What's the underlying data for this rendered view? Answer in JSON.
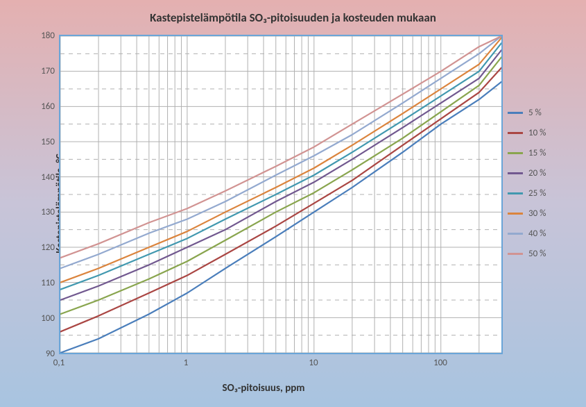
{
  "chart": {
    "type": "line",
    "title": "Kastepistelämpötila SO₃-pitoisuuden ja kosteuden mukaan",
    "title_fontsize": 17,
    "xlabel": "SO₃-pitoisuus, ppm",
    "ylabel": "Kastepistelämpötila, °C",
    "axis_label_fontsize": 15,
    "tick_fontsize": 13,
    "legend_fontsize": 13,
    "plot_background": "#ffffff",
    "plot_border_color": "#6aa5d8",
    "outer_gradient_top": "#e4b0b0",
    "outer_gradient_mid": "#c8c4d8",
    "outer_gradient_bot": "#a8c4e0",
    "grid_major_color": "#b0b0b0",
    "grid_minor_color": "#e8e8e8",
    "grid_major_width": 1,
    "grid_minor_width": 1,
    "x_scale": "log",
    "y_scale": "linear",
    "xlim": [
      0.1,
      300
    ],
    "ylim": [
      90,
      180
    ],
    "y_ticks": [
      90,
      100,
      110,
      120,
      130,
      140,
      150,
      160,
      170,
      180
    ],
    "x_ticks_major": [
      0.1,
      1,
      10,
      100
    ],
    "x_tick_labels": [
      "0,1",
      "1",
      "10",
      "100"
    ],
    "line_width": 2.2,
    "series": [
      {
        "label": "5 %",
        "color": "#4a7ebb",
        "data": [
          [
            0.1,
            89
          ],
          [
            0.2,
            94
          ],
          [
            0.5,
            101
          ],
          [
            1,
            107
          ],
          [
            2,
            114
          ],
          [
            5,
            123
          ],
          [
            10,
            130
          ],
          [
            20,
            137
          ],
          [
            50,
            147
          ],
          [
            100,
            155
          ],
          [
            200,
            162
          ],
          [
            300,
            167
          ]
        ]
      },
      {
        "label": "10 %",
        "color": "#aa4643",
        "data": [
          [
            0.1,
            96
          ],
          [
            0.2,
            100.5
          ],
          [
            0.5,
            107
          ],
          [
            1,
            112
          ],
          [
            2,
            118
          ],
          [
            5,
            126
          ],
          [
            10,
            132.5
          ],
          [
            20,
            139
          ],
          [
            50,
            149
          ],
          [
            100,
            156.5
          ],
          [
            200,
            164
          ],
          [
            300,
            171
          ]
        ]
      },
      {
        "label": "15 %",
        "color": "#89a54e",
        "data": [
          [
            0.1,
            101
          ],
          [
            0.2,
            105
          ],
          [
            0.5,
            111
          ],
          [
            1,
            116
          ],
          [
            2,
            122
          ],
          [
            5,
            130
          ],
          [
            10,
            135.5
          ],
          [
            20,
            142
          ],
          [
            50,
            151
          ],
          [
            100,
            158.5
          ],
          [
            200,
            166
          ],
          [
            300,
            174
          ]
        ]
      },
      {
        "label": "20 %",
        "color": "#71588f",
        "data": [
          [
            0.1,
            105
          ],
          [
            0.2,
            109
          ],
          [
            0.5,
            115
          ],
          [
            1,
            120
          ],
          [
            2,
            125
          ],
          [
            5,
            133
          ],
          [
            10,
            138.5
          ],
          [
            20,
            145
          ],
          [
            50,
            154
          ],
          [
            100,
            161
          ],
          [
            200,
            168
          ],
          [
            300,
            176
          ]
        ]
      },
      {
        "label": "25 %",
        "color": "#4198af",
        "data": [
          [
            0.1,
            108
          ],
          [
            0.2,
            112
          ],
          [
            0.5,
            118
          ],
          [
            1,
            122.5
          ],
          [
            2,
            128
          ],
          [
            5,
            135
          ],
          [
            10,
            140.5
          ],
          [
            20,
            147
          ],
          [
            50,
            156
          ],
          [
            100,
            163
          ],
          [
            200,
            170
          ],
          [
            300,
            178
          ]
        ]
      },
      {
        "label": "30 %",
        "color": "#db843d",
        "data": [
          [
            0.1,
            110
          ],
          [
            0.2,
            114
          ],
          [
            0.5,
            120
          ],
          [
            1,
            124.5
          ],
          [
            2,
            130
          ],
          [
            5,
            137
          ],
          [
            10,
            142.5
          ],
          [
            20,
            149
          ],
          [
            50,
            158
          ],
          [
            100,
            165
          ],
          [
            200,
            172
          ],
          [
            300,
            179.5
          ]
        ]
      },
      {
        "label": "40 %",
        "color": "#93a9cf",
        "data": [
          [
            0.1,
            114
          ],
          [
            0.2,
            118
          ],
          [
            0.5,
            124
          ],
          [
            1,
            128
          ],
          [
            2,
            133
          ],
          [
            5,
            140.5
          ],
          [
            10,
            146
          ],
          [
            20,
            152
          ],
          [
            50,
            161
          ],
          [
            100,
            168
          ],
          [
            200,
            175
          ],
          [
            300,
            180
          ]
        ]
      },
      {
        "label": "50 %",
        "color": "#d19392",
        "data": [
          [
            0.1,
            117
          ],
          [
            0.2,
            121
          ],
          [
            0.5,
            127
          ],
          [
            1,
            131
          ],
          [
            2,
            136
          ],
          [
            5,
            143
          ],
          [
            10,
            148.5
          ],
          [
            20,
            155
          ],
          [
            50,
            163.5
          ],
          [
            100,
            170
          ],
          [
            200,
            177
          ],
          [
            300,
            180
          ]
        ]
      }
    ]
  }
}
